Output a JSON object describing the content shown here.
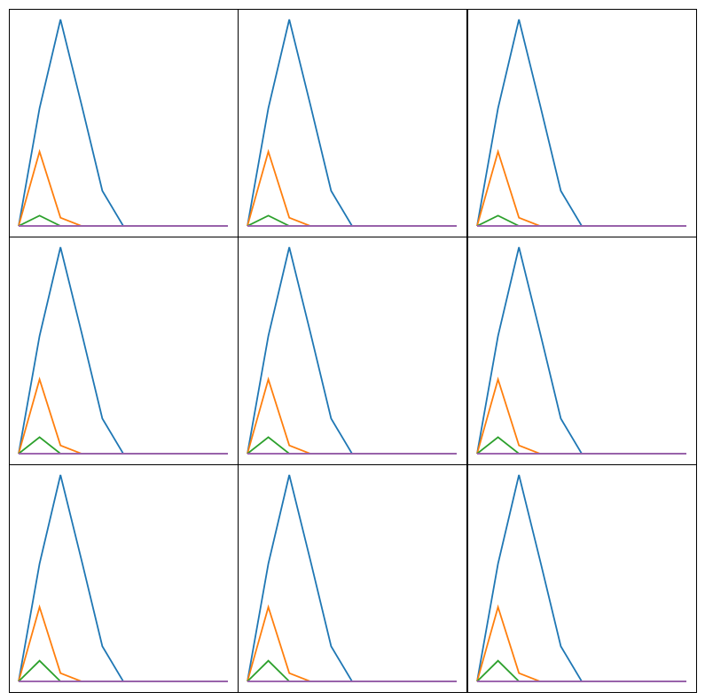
{
  "chart_data": [
    {
      "type": "line",
      "panel": "1",
      "x": [
        0,
        1,
        2,
        3,
        4,
        5,
        6,
        7,
        8,
        9,
        10
      ],
      "series": [
        {
          "values": [
            0,
            0.57,
            1.0,
            0.59,
            0.17,
            0,
            0,
            0,
            0,
            0,
            0
          ],
          "color": "#1f77b4"
        },
        {
          "values": [
            0,
            0.36,
            0.04,
            0,
            0,
            0,
            0,
            0,
            0,
            0,
            0
          ],
          "color": "#ff7f0e"
        },
        {
          "values": [
            0,
            0.05,
            0,
            0,
            0,
            0,
            0,
            0,
            0,
            0,
            0
          ],
          "color": "#2ca02c"
        },
        {
          "values": [
            0,
            0,
            0,
            0,
            0,
            0,
            0,
            0,
            0,
            0,
            0
          ],
          "color": "#d62728"
        },
        {
          "values": [
            0,
            0,
            0,
            0,
            0,
            0,
            0,
            0,
            0,
            0,
            0
          ],
          "color": "#9467bd"
        }
      ]
    },
    {
      "type": "line",
      "panel": "2",
      "x": [
        0,
        1,
        2,
        3,
        4,
        5,
        6,
        7,
        8,
        9,
        10
      ],
      "series": [
        {
          "values": [
            0,
            0.57,
            1.0,
            0.59,
            0.17,
            0,
            0,
            0,
            0,
            0,
            0
          ],
          "color": "#1f77b4"
        },
        {
          "values": [
            0,
            0.36,
            0.04,
            0,
            0,
            0,
            0,
            0,
            0,
            0,
            0
          ],
          "color": "#ff7f0e"
        },
        {
          "values": [
            0,
            0.05,
            0,
            0,
            0,
            0,
            0,
            0,
            0,
            0,
            0
          ],
          "color": "#2ca02c"
        },
        {
          "values": [
            0,
            0,
            0,
            0,
            0,
            0,
            0,
            0,
            0,
            0,
            0
          ],
          "color": "#d62728"
        },
        {
          "values": [
            0,
            0,
            0,
            0,
            0,
            0,
            0,
            0,
            0,
            0,
            0
          ],
          "color": "#9467bd"
        }
      ]
    },
    {
      "type": "line",
      "panel": "3",
      "x": [
        0,
        1,
        2,
        3,
        4,
        5,
        6,
        7,
        8,
        9,
        10
      ],
      "series": [
        {
          "values": [
            0,
            0.57,
            1.0,
            0.59,
            0.17,
            0,
            0,
            0,
            0,
            0,
            0
          ],
          "color": "#1f77b4"
        },
        {
          "values": [
            0,
            0.36,
            0.04,
            0,
            0,
            0,
            0,
            0,
            0,
            0,
            0
          ],
          "color": "#ff7f0e"
        },
        {
          "values": [
            0,
            0.05,
            0,
            0,
            0,
            0,
            0,
            0,
            0,
            0,
            0
          ],
          "color": "#2ca02c"
        },
        {
          "values": [
            0,
            0,
            0,
            0,
            0,
            0,
            0,
            0,
            0,
            0,
            0
          ],
          "color": "#d62728"
        },
        {
          "values": [
            0,
            0,
            0,
            0,
            0,
            0,
            0,
            0,
            0,
            0,
            0
          ],
          "color": "#9467bd"
        }
      ]
    },
    {
      "type": "line",
      "panel": "4",
      "x": [
        0,
        1,
        2,
        3,
        4,
        5,
        6,
        7,
        8,
        9,
        10
      ],
      "series": [
        {
          "values": [
            0,
            0.57,
            1.0,
            0.59,
            0.17,
            0,
            0,
            0,
            0,
            0,
            0
          ],
          "color": "#1f77b4"
        },
        {
          "values": [
            0,
            0.36,
            0.04,
            0,
            0,
            0,
            0,
            0,
            0,
            0,
            0
          ],
          "color": "#ff7f0e"
        },
        {
          "values": [
            0,
            0.08,
            0,
            0,
            0,
            0,
            0,
            0,
            0,
            0,
            0
          ],
          "color": "#2ca02c"
        },
        {
          "values": [
            0,
            0,
            0,
            0,
            0,
            0,
            0,
            0,
            0,
            0,
            0
          ],
          "color": "#d62728"
        },
        {
          "values": [
            0,
            0,
            0,
            0,
            0,
            0,
            0,
            0,
            0,
            0,
            0
          ],
          "color": "#9467bd"
        }
      ]
    },
    {
      "type": "line",
      "panel": "5",
      "x": [
        0,
        1,
        2,
        3,
        4,
        5,
        6,
        7,
        8,
        9,
        10
      ],
      "series": [
        {
          "values": [
            0,
            0.57,
            1.0,
            0.59,
            0.17,
            0,
            0,
            0,
            0,
            0,
            0
          ],
          "color": "#1f77b4"
        },
        {
          "values": [
            0,
            0.36,
            0.04,
            0,
            0,
            0,
            0,
            0,
            0,
            0,
            0
          ],
          "color": "#ff7f0e"
        },
        {
          "values": [
            0,
            0.08,
            0,
            0,
            0,
            0,
            0,
            0,
            0,
            0,
            0
          ],
          "color": "#2ca02c"
        },
        {
          "values": [
            0,
            0,
            0,
            0,
            0,
            0,
            0,
            0,
            0,
            0,
            0
          ],
          "color": "#d62728"
        },
        {
          "values": [
            0,
            0,
            0,
            0,
            0,
            0,
            0,
            0,
            0,
            0,
            0
          ],
          "color": "#9467bd"
        }
      ]
    },
    {
      "type": "line",
      "panel": "6",
      "x": [
        0,
        1,
        2,
        3,
        4,
        5,
        6,
        7,
        8,
        9,
        10
      ],
      "series": [
        {
          "values": [
            0,
            0.57,
            1.0,
            0.59,
            0.17,
            0,
            0,
            0,
            0,
            0,
            0
          ],
          "color": "#1f77b4"
        },
        {
          "values": [
            0,
            0.36,
            0.04,
            0,
            0,
            0,
            0,
            0,
            0,
            0,
            0
          ],
          "color": "#ff7f0e"
        },
        {
          "values": [
            0,
            0.08,
            0,
            0,
            0,
            0,
            0,
            0,
            0,
            0,
            0
          ],
          "color": "#2ca02c"
        },
        {
          "values": [
            0,
            0,
            0,
            0,
            0,
            0,
            0,
            0,
            0,
            0,
            0
          ],
          "color": "#d62728"
        },
        {
          "values": [
            0,
            0,
            0,
            0,
            0,
            0,
            0,
            0,
            0,
            0,
            0
          ],
          "color": "#9467bd"
        }
      ]
    },
    {
      "type": "line",
      "panel": "7",
      "x": [
        0,
        1,
        2,
        3,
        4,
        5,
        6,
        7,
        8,
        9,
        10
      ],
      "series": [
        {
          "values": [
            0,
            0.57,
            1.0,
            0.59,
            0.17,
            0,
            0,
            0,
            0,
            0,
            0
          ],
          "color": "#1f77b4"
        },
        {
          "values": [
            0,
            0.36,
            0.04,
            0,
            0,
            0,
            0,
            0,
            0,
            0,
            0
          ],
          "color": "#ff7f0e"
        },
        {
          "values": [
            0,
            0.1,
            0,
            0,
            0,
            0,
            0,
            0,
            0,
            0,
            0
          ],
          "color": "#2ca02c"
        },
        {
          "values": [
            0,
            0,
            0,
            0,
            0,
            0,
            0,
            0,
            0,
            0,
            0
          ],
          "color": "#d62728"
        },
        {
          "values": [
            0,
            0,
            0,
            0,
            0,
            0,
            0,
            0,
            0,
            0,
            0
          ],
          "color": "#9467bd"
        }
      ]
    },
    {
      "type": "line",
      "panel": "8",
      "x": [
        0,
        1,
        2,
        3,
        4,
        5,
        6,
        7,
        8,
        9,
        10
      ],
      "series": [
        {
          "values": [
            0,
            0.57,
            1.0,
            0.59,
            0.17,
            0,
            0,
            0,
            0,
            0,
            0
          ],
          "color": "#1f77b4"
        },
        {
          "values": [
            0,
            0.36,
            0.04,
            0,
            0,
            0,
            0,
            0,
            0,
            0,
            0
          ],
          "color": "#ff7f0e"
        },
        {
          "values": [
            0,
            0.1,
            0,
            0,
            0,
            0,
            0,
            0,
            0,
            0,
            0
          ],
          "color": "#2ca02c"
        },
        {
          "values": [
            0,
            0,
            0,
            0,
            0,
            0,
            0,
            0,
            0,
            0,
            0
          ],
          "color": "#d62728"
        },
        {
          "values": [
            0,
            0,
            0,
            0,
            0,
            0,
            0,
            0,
            0,
            0,
            0
          ],
          "color": "#9467bd"
        }
      ]
    },
    {
      "type": "line",
      "panel": "9",
      "x": [
        0,
        1,
        2,
        3,
        4,
        5,
        6,
        7,
        8,
        9,
        10
      ],
      "series": [
        {
          "values": [
            0,
            0.57,
            1.0,
            0.59,
            0.17,
            0,
            0,
            0,
            0,
            0,
            0
          ],
          "color": "#1f77b4"
        },
        {
          "values": [
            0,
            0.36,
            0.04,
            0,
            0,
            0,
            0,
            0,
            0,
            0,
            0
          ],
          "color": "#ff7f0e"
        },
        {
          "values": [
            0,
            0.1,
            0,
            0,
            0,
            0,
            0,
            0,
            0,
            0,
            0
          ],
          "color": "#2ca02c"
        },
        {
          "values": [
            0,
            0,
            0,
            0,
            0,
            0,
            0,
            0,
            0,
            0,
            0
          ],
          "color": "#d62728"
        },
        {
          "values": [
            0,
            0,
            0,
            0,
            0,
            0,
            0,
            0,
            0,
            0,
            0
          ],
          "color": "#9467bd"
        }
      ]
    }
  ]
}
